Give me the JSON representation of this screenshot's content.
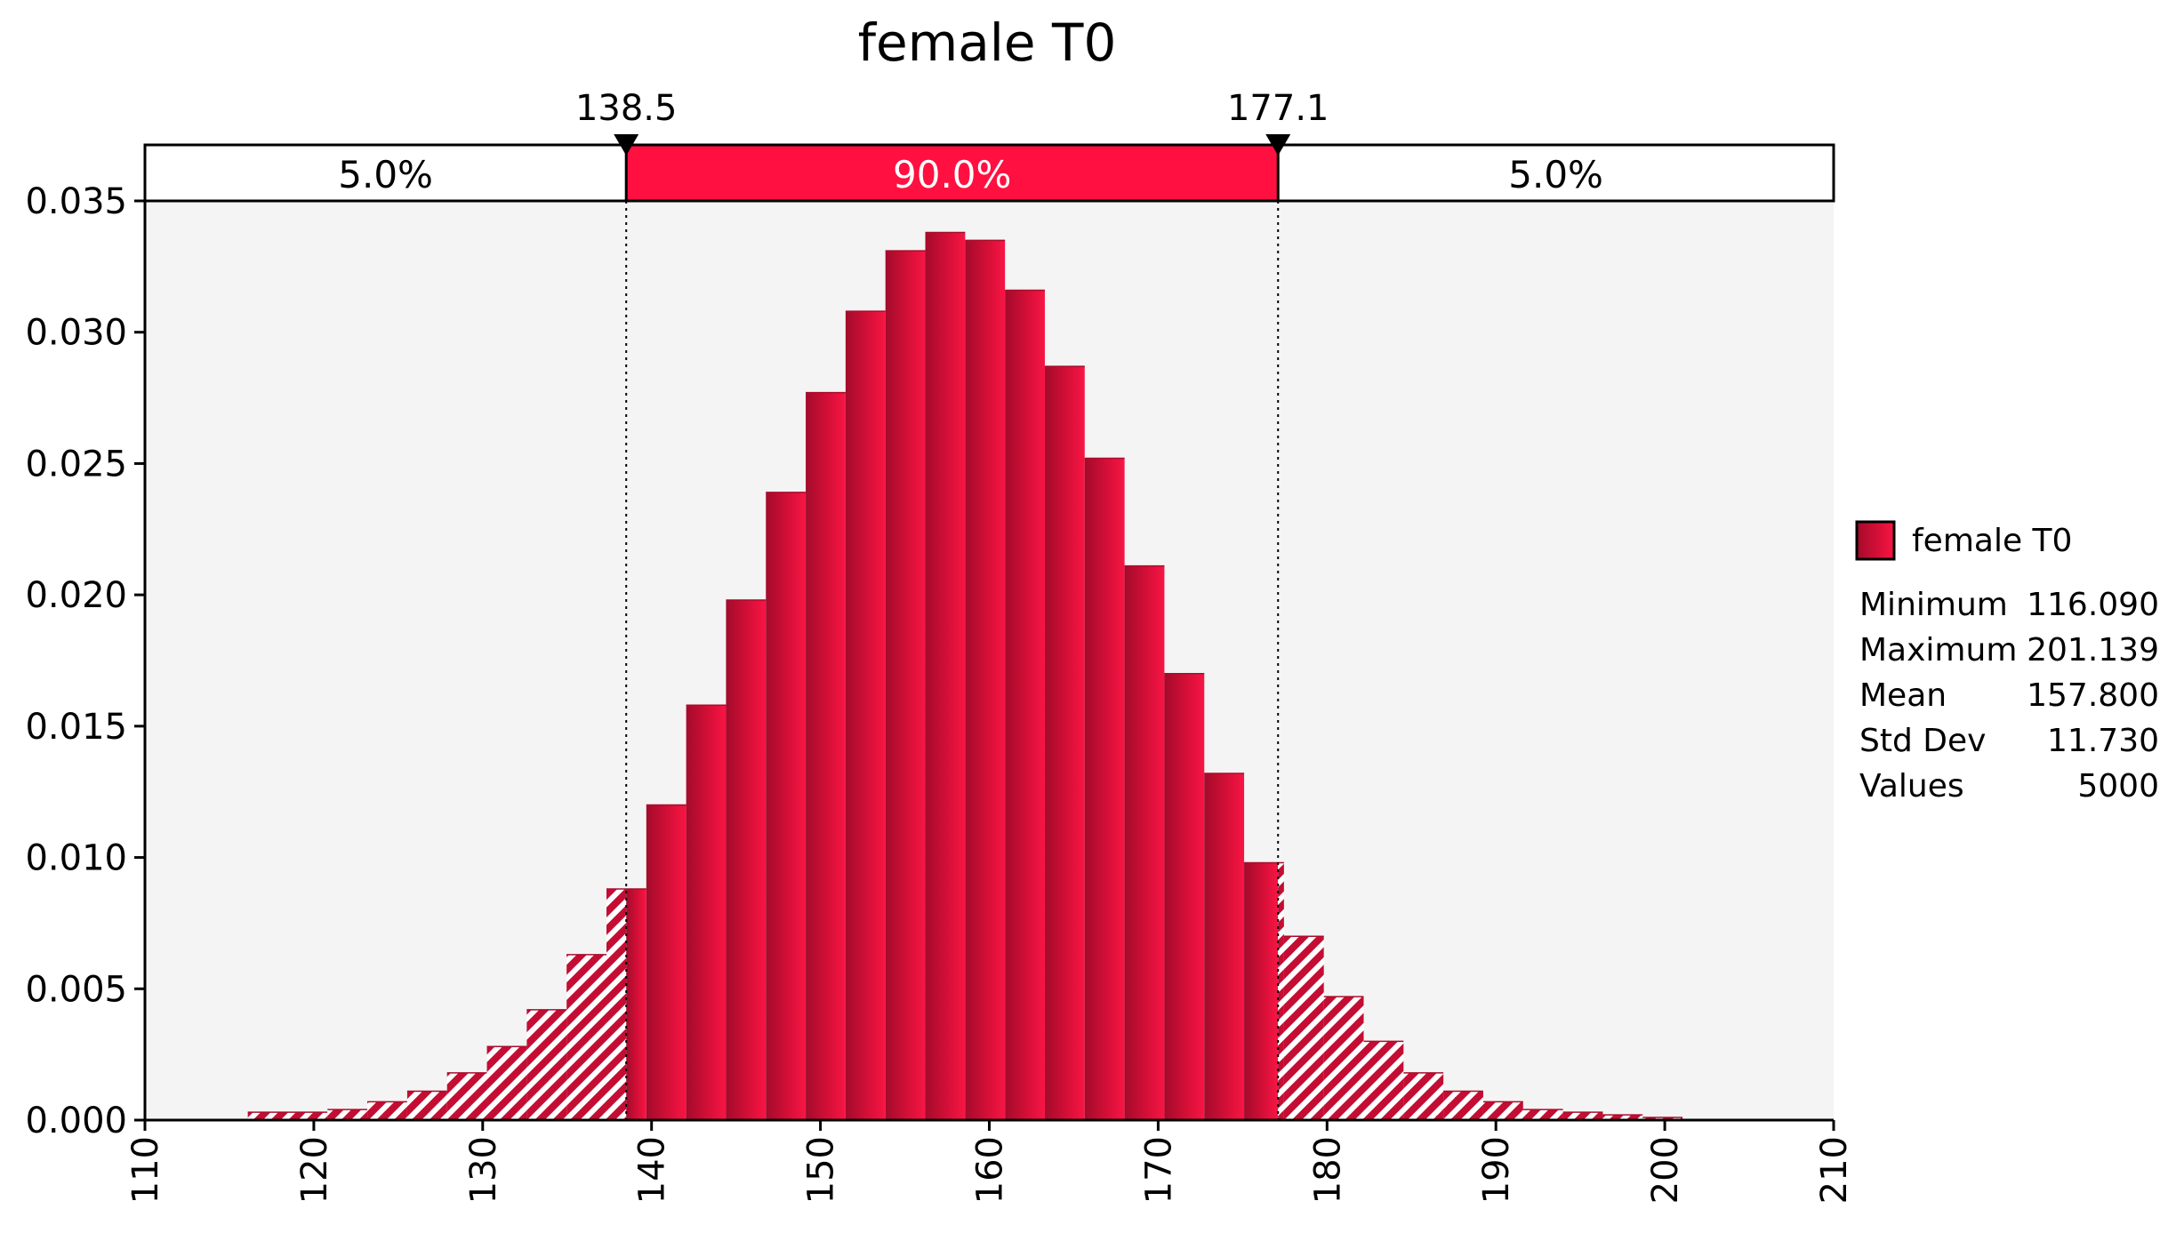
{
  "chart_data": {
    "type": "bar",
    "title": "female T0",
    "xlabel": "",
    "ylabel": "",
    "xlim": [
      110,
      210
    ],
    "ylim": [
      0,
      0.035
    ],
    "x_ticks": [
      "110",
      "120",
      "130",
      "140",
      "150",
      "160",
      "170",
      "180",
      "190",
      "200",
      "210"
    ],
    "y_ticks": [
      "0.000",
      "0.005",
      "0.010",
      "0.015",
      "0.020",
      "0.025",
      "0.030",
      "0.035"
    ],
    "bin_width": 2.36,
    "bin_starts": [
      116.09,
      118.45,
      120.81,
      123.17,
      125.53,
      127.89,
      130.25,
      132.61,
      134.97,
      137.33,
      139.69,
      142.05,
      144.41,
      146.77,
      149.13,
      151.49,
      153.85,
      156.21,
      158.57,
      160.93,
      163.29,
      165.65,
      168.01,
      170.37,
      172.73,
      175.09,
      177.45,
      179.81,
      182.17,
      184.53,
      186.89,
      189.25,
      191.61,
      193.97,
      196.33,
      198.69
    ],
    "values": [
      0.0003,
      0.0003,
      0.0004,
      0.0007,
      0.0011,
      0.0018,
      0.0028,
      0.0042,
      0.0063,
      0.0088,
      0.012,
      0.0158,
      0.0198,
      0.0239,
      0.0277,
      0.0308,
      0.0331,
      0.0338,
      0.0335,
      0.0316,
      0.0287,
      0.0252,
      0.0211,
      0.017,
      0.0132,
      0.0098,
      0.007,
      0.0047,
      0.003,
      0.0018,
      0.0011,
      0.0007,
      0.0004,
      0.0003,
      0.0002,
      0.0001
    ],
    "markers": {
      "left_value": 138.5,
      "left_label": "138.5",
      "right_value": 177.1,
      "right_label": "177.1"
    },
    "regions": [
      {
        "label": "5.0%"
      },
      {
        "label": "90.0%"
      },
      {
        "label": "5.0%"
      }
    ],
    "grid": false,
    "legend_position": "right",
    "legend": {
      "series_name": "female T0",
      "stats": [
        {
          "label": "Minimum",
          "value": "116.090"
        },
        {
          "label": "Maximum",
          "value": "201.139"
        },
        {
          "label": "Mean",
          "value": "157.800"
        },
        {
          "label": "Std Dev",
          "value": "11.730"
        },
        {
          "label": "Values",
          "value": "5000"
        }
      ]
    },
    "colors": {
      "bar": "#e8103a",
      "bar_dark": "#a80d2c",
      "plot_bg": "#f4f4f4",
      "highlight": "#ff1040"
    }
  }
}
